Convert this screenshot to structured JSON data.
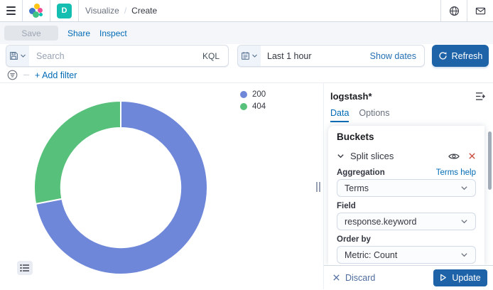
{
  "header": {
    "app_badge": "D",
    "breadcrumb": {
      "section": "Visualize",
      "separator": "/",
      "current": "Create"
    }
  },
  "actions_bar": {
    "save": "Save",
    "share": "Share",
    "inspect": "Inspect"
  },
  "query_bar": {
    "search_placeholder": "Search",
    "language": "KQL",
    "time_range": "Last 1 hour",
    "show_dates": "Show dates",
    "refresh": "Refresh",
    "add_filter": "+ Add filter"
  },
  "sidebar": {
    "index_pattern": "logstash*",
    "tabs": [
      {
        "label": "Data",
        "active": true
      },
      {
        "label": "Options",
        "active": false
      }
    ],
    "buckets": {
      "title": "Buckets",
      "bucket_type": "Split slices",
      "fields": [
        {
          "label": "Aggregation",
          "value": "Terms",
          "help": "Terms help"
        },
        {
          "label": "Field",
          "value": "response.keyword"
        },
        {
          "label": "Order by",
          "value": "Metric: Count"
        }
      ]
    },
    "footer": {
      "discard": "Discard",
      "update": "Update"
    }
  },
  "chart_data": {
    "type": "pie",
    "donut": true,
    "labels": [
      "200",
      "404"
    ],
    "values": [
      72,
      28
    ],
    "colors": [
      "#6F87D8",
      "#57C17B"
    ],
    "inner_radius_ratio": 0.69,
    "start_angle": "top",
    "direction": "clockwise",
    "legend_position": "top-right"
  }
}
